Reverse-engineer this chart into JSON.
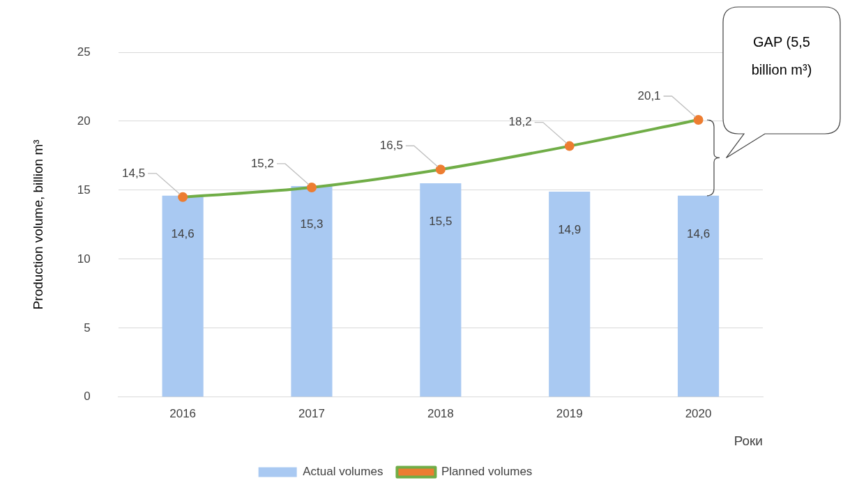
{
  "chart_data": {
    "type": "bar",
    "categories": [
      "2016",
      "2017",
      "2018",
      "2019",
      "2020"
    ],
    "series": [
      {
        "name": "Actual volumes",
        "color": "#a9c9f2",
        "values": [
          14.6,
          15.3,
          15.5,
          14.9,
          14.6
        ],
        "value_labels": [
          "14,6",
          "15,3",
          "15,5",
          "14,9",
          "14,6"
        ]
      },
      {
        "name": "Planned volumes",
        "type": "line",
        "color": "#70ad47",
        "values": [
          14.5,
          15.2,
          16.5,
          18.2,
          20.1
        ],
        "value_labels": [
          "14,5",
          "15,2",
          "16,5",
          "18,2",
          "20,1"
        ]
      }
    ],
    "xlabel": "Роки",
    "ylabel": "Production volume, billion m³",
    "ylim": [
      0,
      25
    ],
    "yticks": [
      0,
      5,
      10,
      15,
      20,
      25
    ],
    "grid": "y",
    "legend": "bottom",
    "marker": "circle",
    "annotations": [
      "GAP (5,5 billion m³)"
    ]
  }
}
